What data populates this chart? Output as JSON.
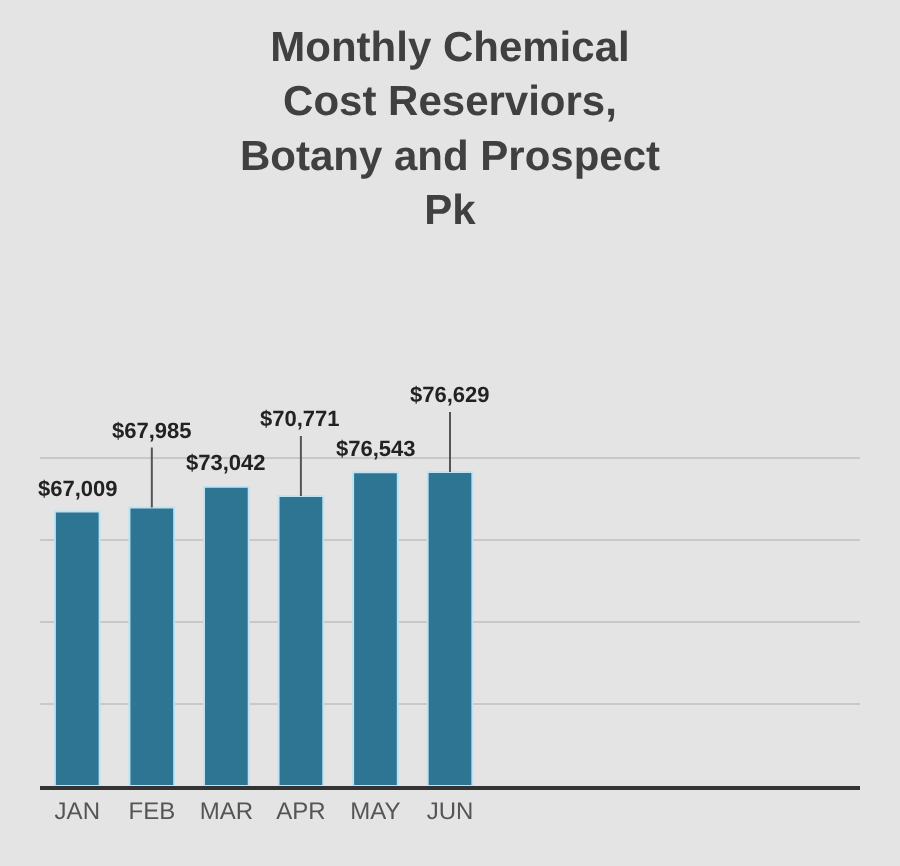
{
  "chart_data": {
    "type": "bar",
    "title": "Monthly Chemical Cost Reserviors, Botany and Prospect Pk",
    "categories": [
      "JAN",
      "FEB",
      "MAR",
      "APR",
      "MAY",
      "JUN"
    ],
    "values": [
      67009,
      67985,
      73042,
      70771,
      76543,
      76629
    ],
    "value_labels": [
      "$67,009",
      "$67,985",
      "$73,042",
      "$70,771",
      "$76,543",
      "$76,629"
    ],
    "color": "#2e7593",
    "tick_labels": "x",
    "grid": "y",
    "legend": false
  }
}
